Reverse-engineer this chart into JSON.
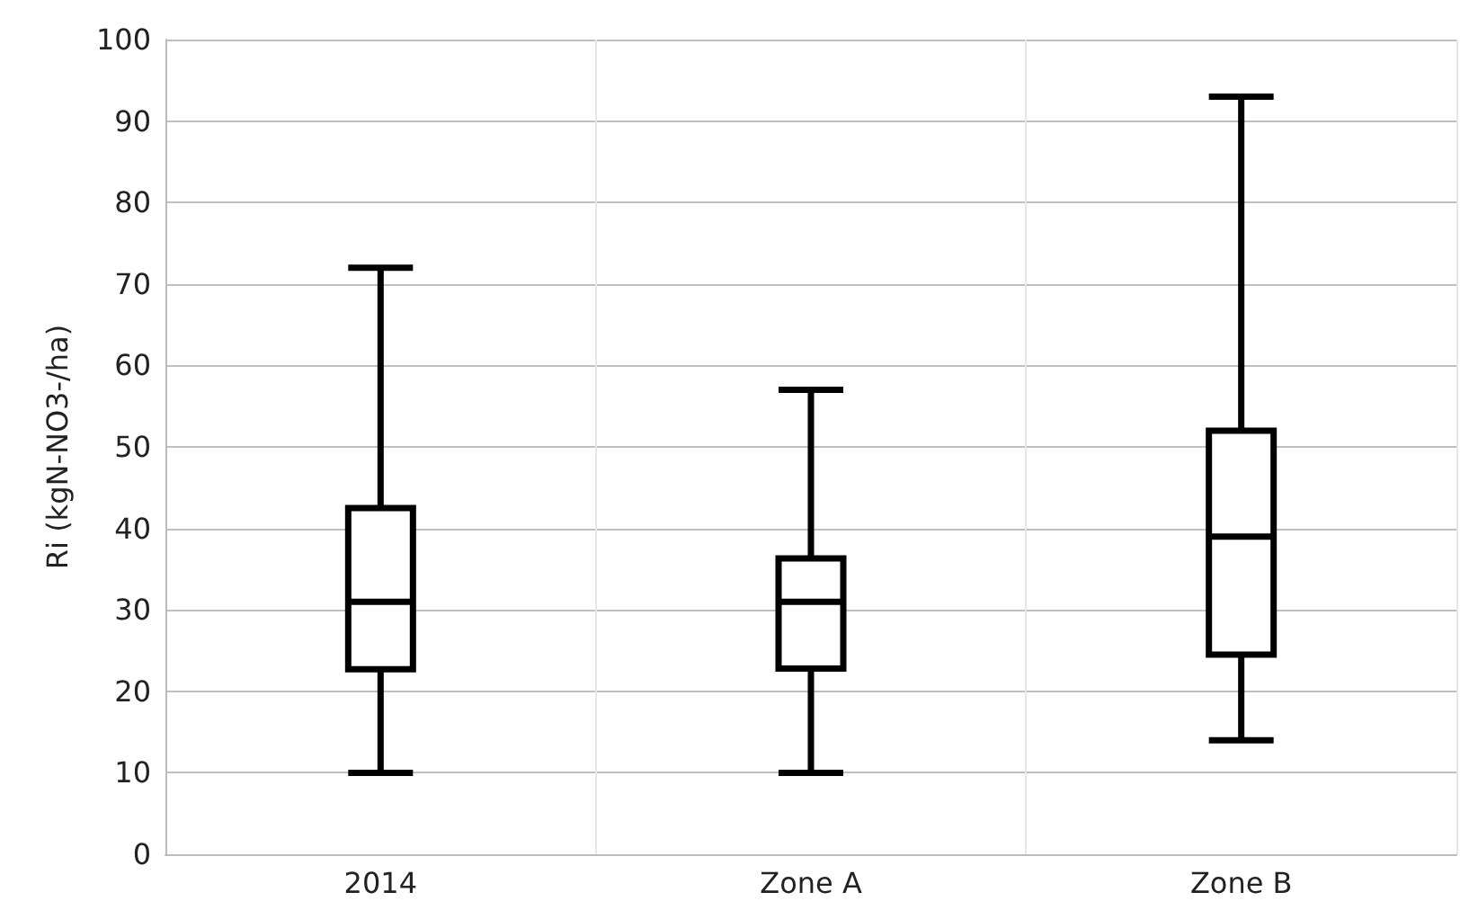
{
  "chart_data": {
    "type": "box",
    "ylabel": "Ri (kgN-NO3-/ha)",
    "categories": [
      "2014",
      "Zone A",
      "Zone B"
    ],
    "series": [
      {
        "color": "#000000",
        "boxes": [
          {
            "low": 10,
            "q1": 22.7,
            "median": 31,
            "q3": 42.5,
            "high": 72
          },
          {
            "low": 10,
            "q1": 22.8,
            "median": 31,
            "q3": 36.3,
            "high": 57
          },
          {
            "low": 14,
            "q1": 24.5,
            "median": 39,
            "q3": 52,
            "high": 93
          }
        ]
      }
    ],
    "ylim": [
      0,
      100
    ],
    "yticks": [
      0,
      10,
      20,
      30,
      40,
      50,
      60,
      70,
      80,
      90,
      100
    ],
    "grid": true
  }
}
